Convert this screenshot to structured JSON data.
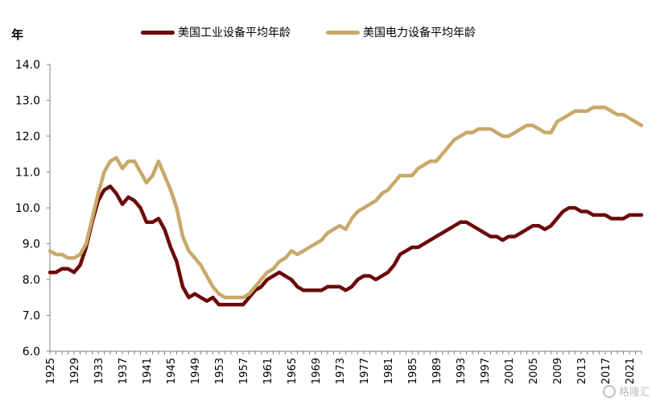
{
  "chart_data": {
    "type": "line",
    "ylabel": "年",
    "ylim": [
      6.0,
      14.0
    ],
    "yticks": [
      "6.0",
      "7.0",
      "8.0",
      "9.0",
      "10.0",
      "11.0",
      "12.0",
      "13.0",
      "14.0"
    ],
    "xlim": [
      1925,
      2023
    ],
    "xticks": [
      "1925",
      "1929",
      "1933",
      "1937",
      "1941",
      "1945",
      "1949",
      "1953",
      "1957",
      "1961",
      "1965",
      "1969",
      "1973",
      "1977",
      "1981",
      "1985",
      "1989",
      "1993",
      "1997",
      "2001",
      "2005",
      "2009",
      "2013",
      "2017",
      "2021"
    ],
    "grid": false,
    "legend_position": "top",
    "series": [
      {
        "name": "美国工业设备平均年龄",
        "color": "#6b0a0a",
        "points": [
          [
            1925,
            8.2
          ],
          [
            1926,
            8.2
          ],
          [
            1927,
            8.3
          ],
          [
            1928,
            8.3
          ],
          [
            1929,
            8.2
          ],
          [
            1930,
            8.4
          ],
          [
            1931,
            8.9
          ],
          [
            1932,
            9.6
          ],
          [
            1933,
            10.2
          ],
          [
            1934,
            10.5
          ],
          [
            1935,
            10.6
          ],
          [
            1936,
            10.4
          ],
          [
            1937,
            10.1
          ],
          [
            1938,
            10.3
          ],
          [
            1939,
            10.2
          ],
          [
            1940,
            10.0
          ],
          [
            1941,
            9.6
          ],
          [
            1942,
            9.6
          ],
          [
            1943,
            9.7
          ],
          [
            1944,
            9.4
          ],
          [
            1945,
            8.9
          ],
          [
            1946,
            8.5
          ],
          [
            1947,
            7.8
          ],
          [
            1948,
            7.5
          ],
          [
            1949,
            7.6
          ],
          [
            1950,
            7.5
          ],
          [
            1951,
            7.4
          ],
          [
            1952,
            7.5
          ],
          [
            1953,
            7.3
          ],
          [
            1954,
            7.3
          ],
          [
            1955,
            7.3
          ],
          [
            1956,
            7.3
          ],
          [
            1957,
            7.3
          ],
          [
            1958,
            7.5
          ],
          [
            1959,
            7.7
          ],
          [
            1960,
            7.8
          ],
          [
            1961,
            8.0
          ],
          [
            1962,
            8.1
          ],
          [
            1963,
            8.2
          ],
          [
            1964,
            8.1
          ],
          [
            1965,
            8.0
          ],
          [
            1966,
            7.8
          ],
          [
            1967,
            7.7
          ],
          [
            1968,
            7.7
          ],
          [
            1969,
            7.7
          ],
          [
            1970,
            7.7
          ],
          [
            1971,
            7.8
          ],
          [
            1972,
            7.8
          ],
          [
            1973,
            7.8
          ],
          [
            1974,
            7.7
          ],
          [
            1975,
            7.8
          ],
          [
            1976,
            8.0
          ],
          [
            1977,
            8.1
          ],
          [
            1978,
            8.1
          ],
          [
            1979,
            8.0
          ],
          [
            1980,
            8.1
          ],
          [
            1981,
            8.2
          ],
          [
            1982,
            8.4
          ],
          [
            1983,
            8.7
          ],
          [
            1984,
            8.8
          ],
          [
            1985,
            8.9
          ],
          [
            1986,
            8.9
          ],
          [
            1987,
            9.0
          ],
          [
            1988,
            9.1
          ],
          [
            1989,
            9.2
          ],
          [
            1990,
            9.3
          ],
          [
            1991,
            9.4
          ],
          [
            1992,
            9.5
          ],
          [
            1993,
            9.6
          ],
          [
            1994,
            9.6
          ],
          [
            1995,
            9.5
          ],
          [
            1996,
            9.4
          ],
          [
            1997,
            9.3
          ],
          [
            1998,
            9.2
          ],
          [
            1999,
            9.2
          ],
          [
            2000,
            9.1
          ],
          [
            2001,
            9.2
          ],
          [
            2002,
            9.2
          ],
          [
            2003,
            9.3
          ],
          [
            2004,
            9.4
          ],
          [
            2005,
            9.5
          ],
          [
            2006,
            9.5
          ],
          [
            2007,
            9.4
          ],
          [
            2008,
            9.5
          ],
          [
            2009,
            9.7
          ],
          [
            2010,
            9.9
          ],
          [
            2011,
            10.0
          ],
          [
            2012,
            10.0
          ],
          [
            2013,
            9.9
          ],
          [
            2014,
            9.9
          ],
          [
            2015,
            9.8
          ],
          [
            2016,
            9.8
          ],
          [
            2017,
            9.8
          ],
          [
            2018,
            9.7
          ],
          [
            2019,
            9.7
          ],
          [
            2020,
            9.7
          ],
          [
            2021,
            9.8
          ],
          [
            2022,
            9.8
          ],
          [
            2023,
            9.8
          ]
        ]
      },
      {
        "name": "美国电力设备平均年龄",
        "color": "#c8a96a",
        "points": [
          [
            1925,
            8.8
          ],
          [
            1926,
            8.7
          ],
          [
            1927,
            8.7
          ],
          [
            1928,
            8.6
          ],
          [
            1929,
            8.6
          ],
          [
            1930,
            8.7
          ],
          [
            1931,
            9.0
          ],
          [
            1932,
            9.7
          ],
          [
            1933,
            10.4
          ],
          [
            1934,
            11.0
          ],
          [
            1935,
            11.3
          ],
          [
            1936,
            11.4
          ],
          [
            1937,
            11.1
          ],
          [
            1938,
            11.3
          ],
          [
            1939,
            11.3
          ],
          [
            1940,
            11.0
          ],
          [
            1941,
            10.7
          ],
          [
            1942,
            10.9
          ],
          [
            1943,
            11.3
          ],
          [
            1944,
            10.9
          ],
          [
            1945,
            10.5
          ],
          [
            1946,
            10.0
          ],
          [
            1947,
            9.2
          ],
          [
            1948,
            8.8
          ],
          [
            1949,
            8.6
          ],
          [
            1950,
            8.4
          ],
          [
            1951,
            8.1
          ],
          [
            1952,
            7.8
          ],
          [
            1953,
            7.6
          ],
          [
            1954,
            7.5
          ],
          [
            1955,
            7.5
          ],
          [
            1956,
            7.5
          ],
          [
            1957,
            7.5
          ],
          [
            1958,
            7.6
          ],
          [
            1959,
            7.8
          ],
          [
            1960,
            8.0
          ],
          [
            1961,
            8.2
          ],
          [
            1962,
            8.3
          ],
          [
            1963,
            8.5
          ],
          [
            1964,
            8.6
          ],
          [
            1965,
            8.8
          ],
          [
            1966,
            8.7
          ],
          [
            1967,
            8.8
          ],
          [
            1968,
            8.9
          ],
          [
            1969,
            9.0
          ],
          [
            1970,
            9.1
          ],
          [
            1971,
            9.3
          ],
          [
            1972,
            9.4
          ],
          [
            1973,
            9.5
          ],
          [
            1974,
            9.4
          ],
          [
            1975,
            9.7
          ],
          [
            1976,
            9.9
          ],
          [
            1977,
            10.0
          ],
          [
            1978,
            10.1
          ],
          [
            1979,
            10.2
          ],
          [
            1980,
            10.4
          ],
          [
            1981,
            10.5
          ],
          [
            1982,
            10.7
          ],
          [
            1983,
            10.9
          ],
          [
            1984,
            10.9
          ],
          [
            1985,
            10.9
          ],
          [
            1986,
            11.1
          ],
          [
            1987,
            11.2
          ],
          [
            1988,
            11.3
          ],
          [
            1989,
            11.3
          ],
          [
            1990,
            11.5
          ],
          [
            1991,
            11.7
          ],
          [
            1992,
            11.9
          ],
          [
            1993,
            12.0
          ],
          [
            1994,
            12.1
          ],
          [
            1995,
            12.1
          ],
          [
            1996,
            12.2
          ],
          [
            1997,
            12.2
          ],
          [
            1998,
            12.2
          ],
          [
            1999,
            12.1
          ],
          [
            2000,
            12.0
          ],
          [
            2001,
            12.0
          ],
          [
            2002,
            12.1
          ],
          [
            2003,
            12.2
          ],
          [
            2004,
            12.3
          ],
          [
            2005,
            12.3
          ],
          [
            2006,
            12.2
          ],
          [
            2007,
            12.1
          ],
          [
            2008,
            12.1
          ],
          [
            2009,
            12.4
          ],
          [
            2010,
            12.5
          ],
          [
            2011,
            12.6
          ],
          [
            2012,
            12.7
          ],
          [
            2013,
            12.7
          ],
          [
            2014,
            12.7
          ],
          [
            2015,
            12.8
          ],
          [
            2016,
            12.8
          ],
          [
            2017,
            12.8
          ],
          [
            2018,
            12.7
          ],
          [
            2019,
            12.6
          ],
          [
            2020,
            12.6
          ],
          [
            2021,
            12.5
          ],
          [
            2022,
            12.4
          ],
          [
            2023,
            12.3
          ]
        ]
      }
    ]
  },
  "legend": {
    "items": [
      {
        "label": "美国工业设备平均年龄",
        "color": "#6b0a0a"
      },
      {
        "label": "美国电力设备平均年龄",
        "color": "#c8a96a"
      }
    ]
  },
  "watermark": {
    "text": "格隆汇"
  }
}
